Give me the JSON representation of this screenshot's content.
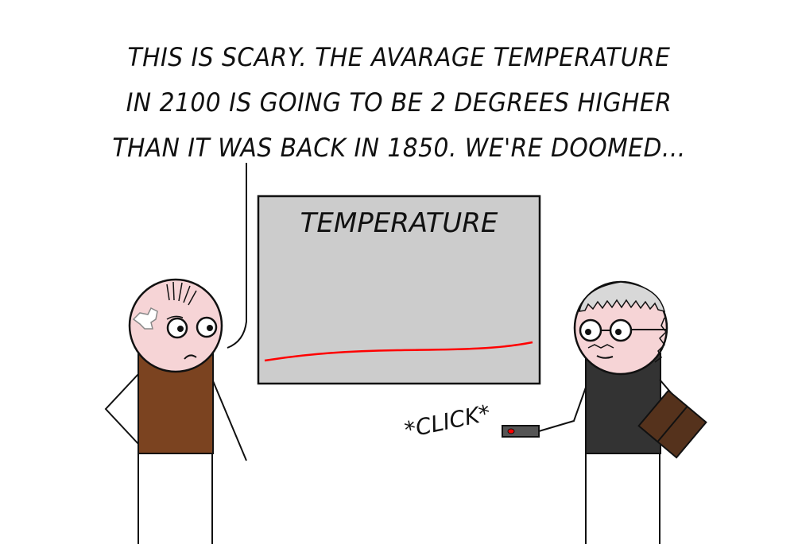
{
  "speech": {
    "lines": [
      "THIS IS SCARY. THE AVARAGE TEMPERATURE",
      "IN 2100 IS GOING TO BE 2 DEGREES HIGHER",
      "THAN IT WAS BACK IN 1850. WE'RE DOOMED..."
    ]
  },
  "screen": {
    "title": "TEMPERATURE"
  },
  "remote": {
    "sound": "*CLICK*"
  },
  "colors": {
    "screen_fill": "#cccccc",
    "curve": "#ff0000",
    "skin": "#f6d4d6",
    "left_shirt": "#7b4320",
    "right_shirt": "#333333",
    "book": "#55321c",
    "hair_right": "#d8d8d8"
  }
}
